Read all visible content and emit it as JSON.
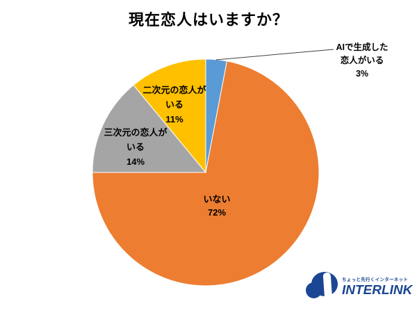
{
  "chart_data": {
    "type": "pie",
    "title": "現在恋人はいますか？",
    "unit": "%",
    "direction": "clockwise",
    "start_angle_deg": 0,
    "legend": "none",
    "data_labels": "category name + percent",
    "slices": [
      {
        "label": "AIで生成した恋人がいる",
        "value": 3,
        "color": "#5B9BD5",
        "label_lines": [
          "AIで生成した",
          "恋人がいる",
          "3%"
        ]
      },
      {
        "label": "いない",
        "value": 72,
        "color": "#ED7D31",
        "label_lines": [
          "いない",
          "72%"
        ]
      },
      {
        "label": "三次元の恋人がいる",
        "value": 14,
        "color": "#A5A5A5",
        "label_lines": [
          "三次元の恋人が",
          "いる",
          "14%"
        ]
      },
      {
        "label": "二次元の恋人がいる",
        "value": 11,
        "color": "#FFC000",
        "label_lines": [
          "二次元の恋人が",
          "いる",
          "11%"
        ]
      }
    ],
    "leader_line_color": "#404040",
    "slice_border_color": "#FFFFFF"
  },
  "logo": {
    "tagline": "ちょっと先行くインターネット",
    "brand": "INTERLINK",
    "color": "#1B4693"
  }
}
